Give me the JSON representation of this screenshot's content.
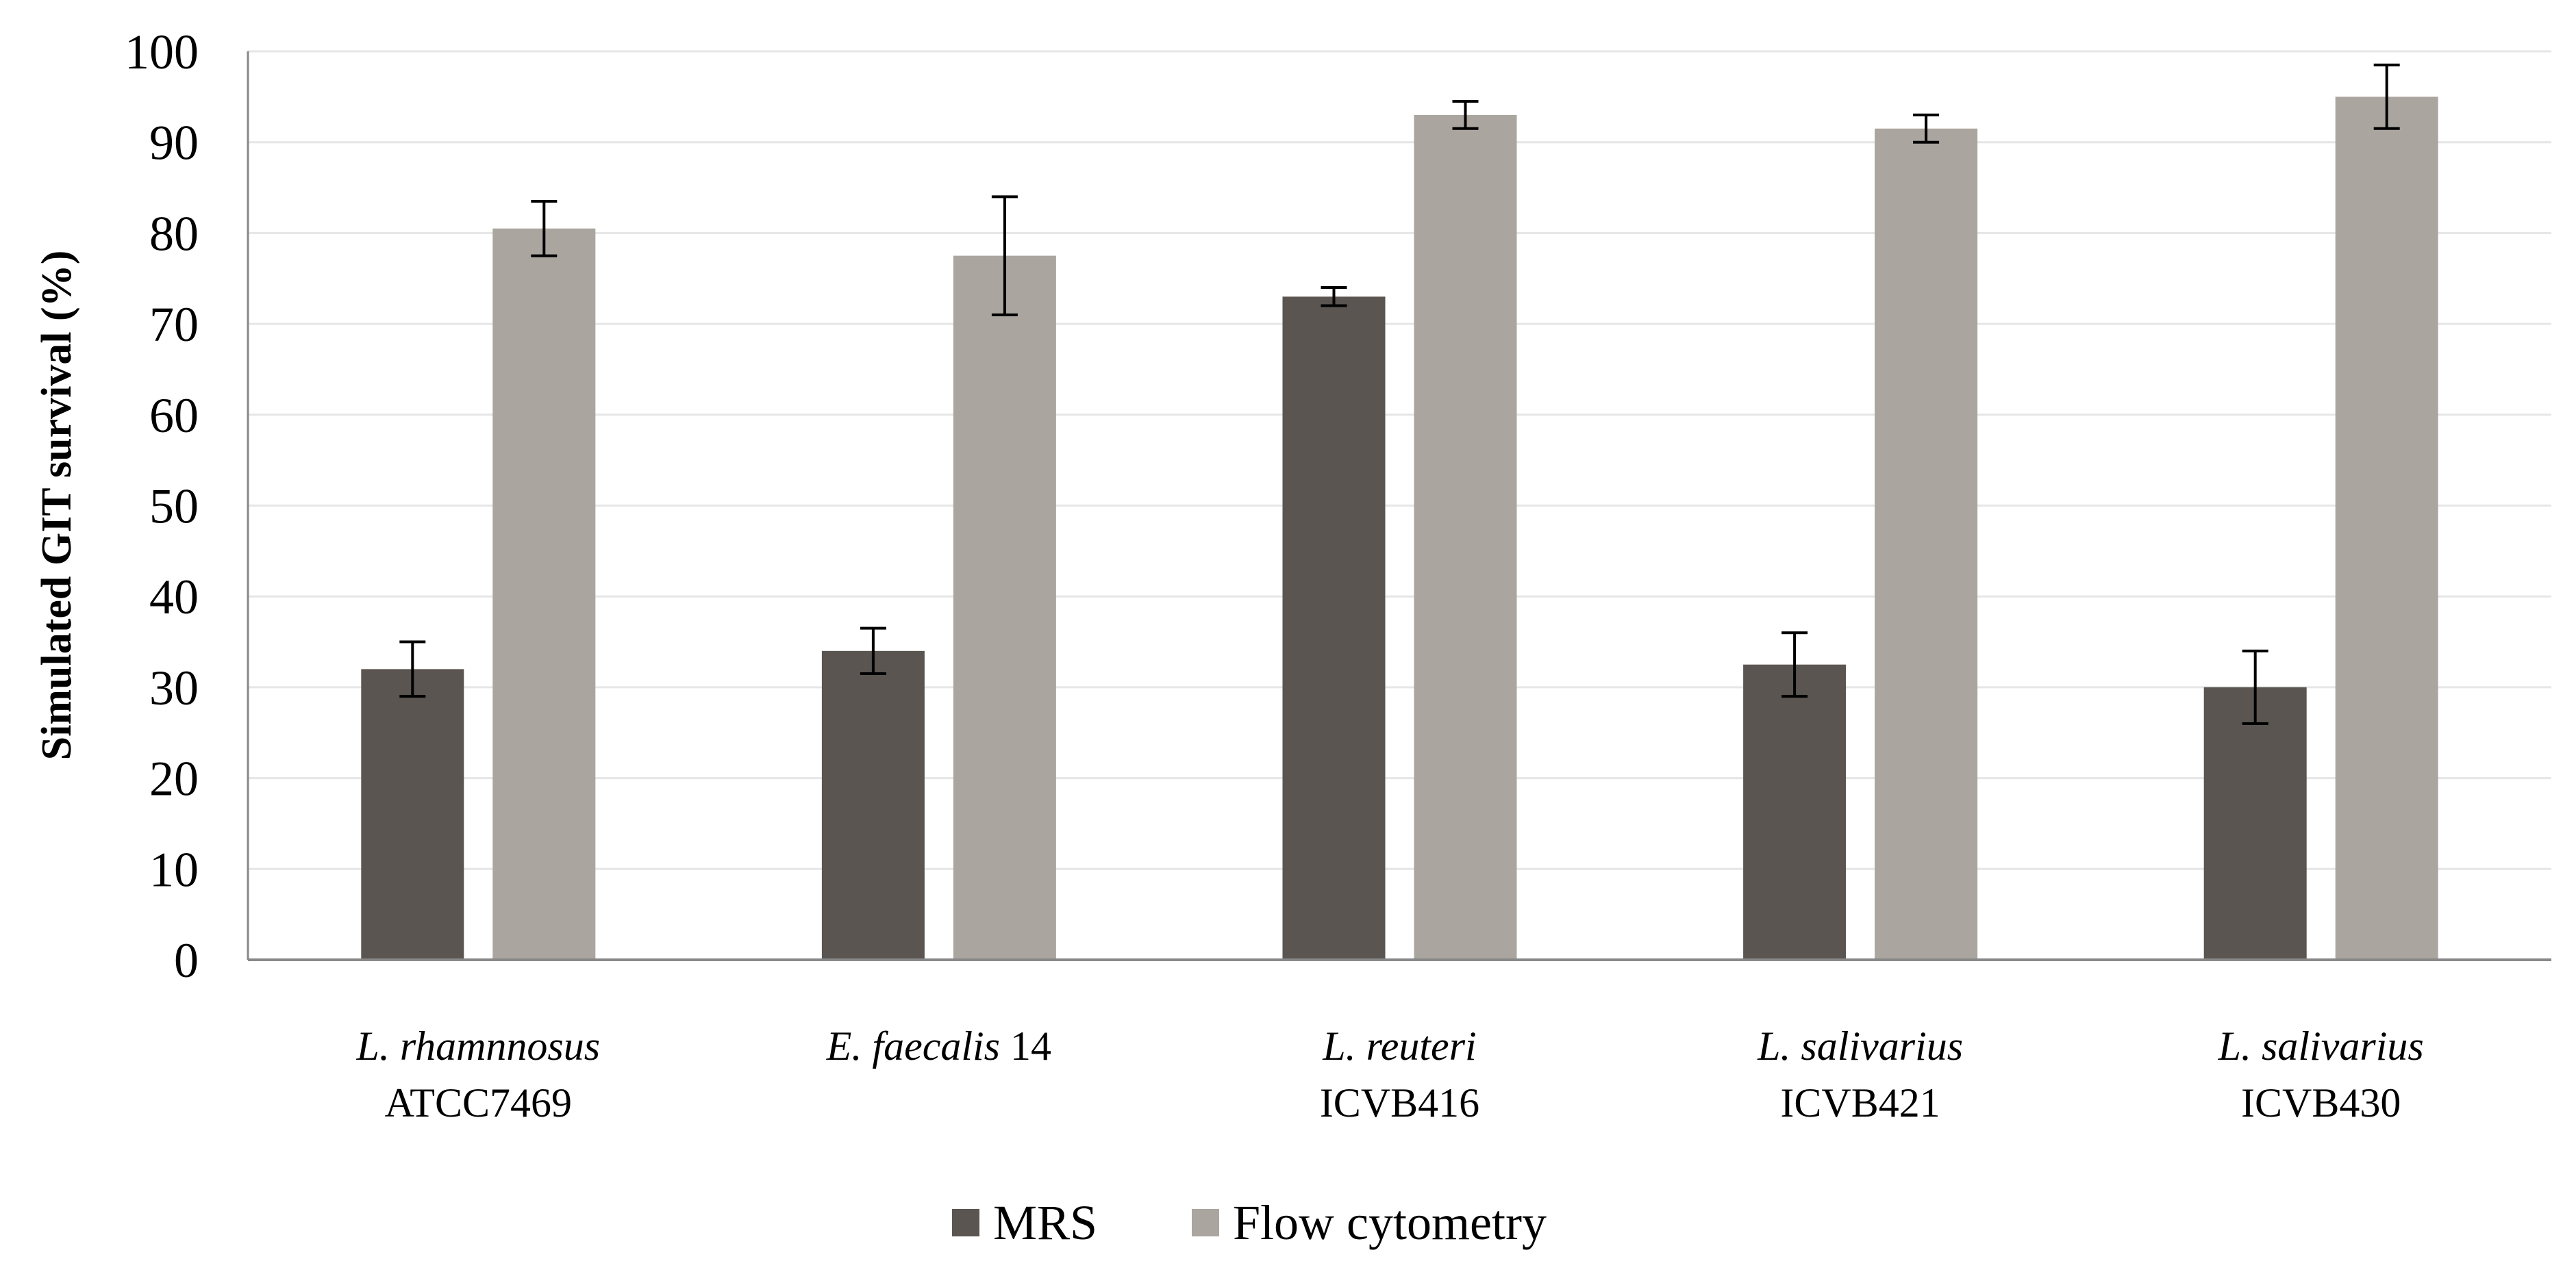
{
  "chart_data": {
    "type": "bar",
    "title": "",
    "xlabel": "",
    "ylabel": "Simulated GIT survival (%)",
    "ylim": [
      0,
      100
    ],
    "yticks": [
      0,
      10,
      20,
      30,
      40,
      50,
      60,
      70,
      80,
      90,
      100
    ],
    "grid": true,
    "legend_position": "bottom",
    "categories": [
      {
        "species": "L. rhamnnosus",
        "strain": "ATCC7469",
        "inline": false
      },
      {
        "species": "E.  faecalis",
        "strain": "14",
        "inline": true
      },
      {
        "species": "L. reuteri",
        "strain": "ICVB416",
        "inline": false
      },
      {
        "species": "L. salivarius",
        "strain": "ICVB421",
        "inline": false
      },
      {
        "species": "L. salivarius",
        "strain": "ICVB430",
        "inline": false
      }
    ],
    "series": [
      {
        "name": "MRS",
        "color": "#5a5550",
        "values": [
          32,
          34,
          73,
          32.5,
          30
        ],
        "errors": [
          3,
          2.5,
          1,
          3.5,
          4
        ]
      },
      {
        "name": "Flow cytometry",
        "color": "#aaa59f",
        "values": [
          80.5,
          77.5,
          93,
          91.5,
          95
        ],
        "errors": [
          3,
          6.5,
          1.5,
          1.5,
          3.5
        ]
      }
    ]
  }
}
